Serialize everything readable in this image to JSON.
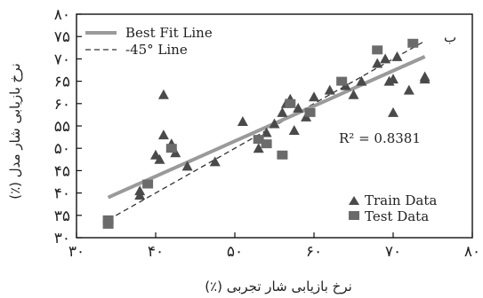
{
  "chart_data": {
    "type": "scatter",
    "panel_label": "ب",
    "xlabel": "نرخ بازیابی شار تجربی (٪)",
    "ylabel": "نرخ بازیابی شار مدل (٪)",
    "xlim": [
      30,
      80
    ],
    "ylim": [
      30,
      80
    ],
    "x_ticks": [
      30,
      40,
      50,
      60,
      70,
      80
    ],
    "y_ticks": [
      30,
      35,
      40,
      45,
      50,
      55,
      60,
      65,
      70,
      75,
      80
    ],
    "x_tick_labels": [
      "۳۰",
      "۴۰",
      "۵۰",
      "۶۰",
      "۷۰",
      "۸۰"
    ],
    "y_tick_labels": [
      "۳۰",
      "۳۵",
      "۴۰",
      "۴۵",
      "۵۰",
      "۵۵",
      "۶۰",
      "۶۵",
      "۷۰",
      "۷۵",
      "۸۰"
    ],
    "annotation": "R² = 0.8381",
    "legend_top": [
      "Best Fit Line",
      "-45° Line"
    ],
    "series": [
      {
        "name": "Train Data",
        "marker": "triangle",
        "color": "#4a4a4a",
        "points": [
          [
            38,
            40.5
          ],
          [
            38,
            39.5
          ],
          [
            40,
            48.5
          ],
          [
            40.5,
            47.5
          ],
          [
            41,
            62
          ],
          [
            41,
            53
          ],
          [
            42,
            51
          ],
          [
            42.5,
            49
          ],
          [
            44,
            46
          ],
          [
            47.5,
            47
          ],
          [
            51,
            56
          ],
          [
            53,
            50
          ],
          [
            54,
            53.5
          ],
          [
            55,
            55.5
          ],
          [
            56,
            58
          ],
          [
            56.5,
            60
          ],
          [
            57,
            61
          ],
          [
            57.5,
            54
          ],
          [
            58,
            59
          ],
          [
            59,
            57
          ],
          [
            60,
            61.5
          ],
          [
            62,
            63
          ],
          [
            64,
            64
          ],
          [
            65,
            62
          ],
          [
            66,
            65
          ],
          [
            68,
            69
          ],
          [
            69,
            70
          ],
          [
            69.5,
            65
          ],
          [
            70,
            65.5
          ],
          [
            70.5,
            70.5
          ],
          [
            70,
            58
          ],
          [
            72,
            63
          ],
          [
            74,
            66
          ],
          [
            74,
            65.5
          ]
        ]
      },
      {
        "name": "Test Data",
        "marker": "square",
        "color": "#6b6b6b",
        "points": [
          [
            34,
            34
          ],
          [
            34,
            33
          ],
          [
            39,
            42
          ],
          [
            42,
            50
          ],
          [
            53,
            52
          ],
          [
            54,
            51
          ],
          [
            56,
            48.5
          ],
          [
            57,
            60
          ],
          [
            59.5,
            58
          ],
          [
            63.5,
            65
          ],
          [
            68,
            72
          ],
          [
            72.5,
            73.5
          ]
        ]
      }
    ],
    "best_fit_line": {
      "name": "Best Fit Line",
      "x": [
        34,
        74
      ],
      "y": [
        39,
        70.5
      ],
      "color": "#9a9a9a"
    },
    "identity_line": {
      "name": "-45° Line",
      "x": [
        34,
        74
      ],
      "y": [
        34,
        74
      ],
      "color": "#333333"
    }
  }
}
